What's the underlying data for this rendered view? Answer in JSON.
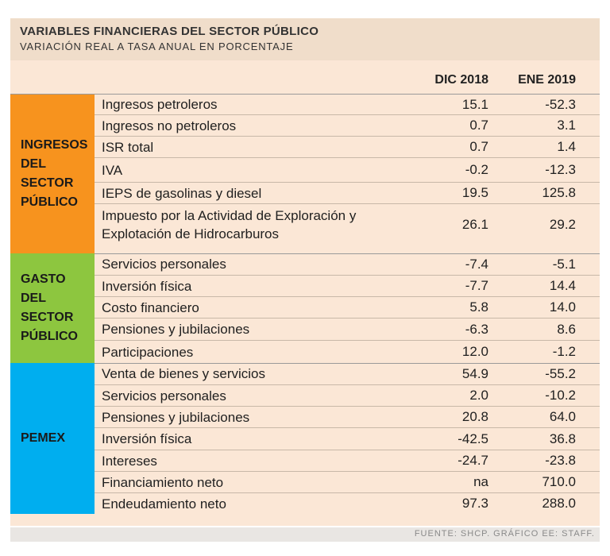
{
  "title": "VARIABLES FINANCIERAS DEL SECTOR PÚBLICO",
  "subtitle": "VARIACIÓN REAL A TASA ANUAL EN PORCENTAJE",
  "columns": [
    "DIC 2018",
    "ENE 2019"
  ],
  "colors": {
    "ingresos": "#f7931e",
    "gasto": "#8dc63f",
    "pemex": "#00aeef",
    "background": "#fbe7d6"
  },
  "sections": [
    {
      "label": "INGRESOS\nDEL\nSECTOR\nPÚBLICO",
      "rows": [
        {
          "label": "Ingresos petroleros",
          "dic2018": "15.1",
          "ene2019": "-52.3"
        },
        {
          "label": "Ingresos no petroleros",
          "dic2018": "0.7",
          "ene2019": "3.1"
        },
        {
          "label": "ISR total",
          "dic2018": "0.7",
          "ene2019": "1.4"
        },
        {
          "label": "IVA",
          "dic2018": "-0.2",
          "ene2019": "-12.3"
        },
        {
          "label": "IEPS de gasolinas y diesel",
          "dic2018": "19.5",
          "ene2019": "125.8"
        },
        {
          "label": "Impuesto por la Actividad de Exploración y Explotación de Hidrocarburos",
          "dic2018": "26.1",
          "ene2019": "29.2"
        }
      ]
    },
    {
      "label": "GASTO\nDEL\nSECTOR\nPÚBLICO",
      "rows": [
        {
          "label": "Servicios personales",
          "dic2018": "-7.4",
          "ene2019": "-5.1"
        },
        {
          "label": "Inversión física",
          "dic2018": "-7.7",
          "ene2019": "14.4"
        },
        {
          "label": "Costo financiero",
          "dic2018": "5.8",
          "ene2019": "14.0"
        },
        {
          "label": "Pensiones y jubilaciones",
          "dic2018": "-6.3",
          "ene2019": "8.6"
        },
        {
          "label": "Participaciones",
          "dic2018": "12.0",
          "ene2019": "-1.2"
        }
      ]
    },
    {
      "label": "PEMEX",
      "rows": [
        {
          "label": "Venta de bienes y servicios",
          "dic2018": "54.9",
          "ene2019": "-55.2"
        },
        {
          "label": "Servicios personales",
          "dic2018": "2.0",
          "ene2019": "-10.2"
        },
        {
          "label": "Pensiones y jubilaciones",
          "dic2018": "20.8",
          "ene2019": "64.0"
        },
        {
          "label": "Inversión física",
          "dic2018": "-42.5",
          "ene2019": "36.8"
        },
        {
          "label": "Intereses",
          "dic2018": "-24.7",
          "ene2019": "-23.8"
        },
        {
          "label": "Financiamiento neto",
          "dic2018": "na",
          "ene2019": "710.0"
        },
        {
          "label": "Endeudamiento neto",
          "dic2018": "97.3",
          "ene2019": "288.0"
        }
      ]
    }
  ],
  "footer": "FUENTE: SHCP. GRÁFICO EE: STAFF."
}
